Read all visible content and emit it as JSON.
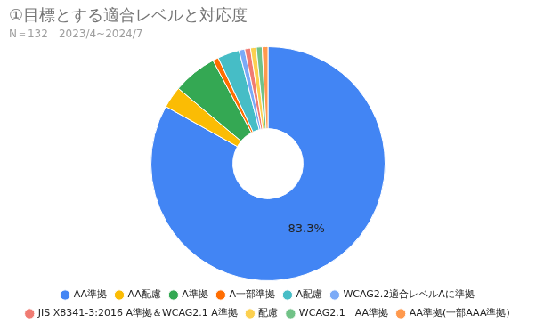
{
  "chart_data": {
    "type": "doughnut",
    "title": "①目標とする適合レベルと対応度",
    "subtitle": "N＝132　2023/4~2024/7",
    "categories": [
      "AA準拠",
      "AA配慮",
      "A準拠",
      "A一部準拠",
      "A配慮",
      "WCAG2.2適合レベルAに準拠",
      "JIS X8341-3:2016 A準拠＆WCAG2.1 A準拠",
      "配慮",
      "WCAG2.1　AA準拠",
      "AA準拠(一部AAA準拠)"
    ],
    "values": [
      83.3,
      3.0,
      6.1,
      0.8,
      3.0,
      0.8,
      0.8,
      0.8,
      0.8,
      0.8
    ],
    "value_labels": [
      "83.3%",
      null,
      null,
      null,
      null,
      null,
      null,
      null,
      null,
      null
    ],
    "colors": [
      "#4285f4",
      "#fbbc04",
      "#34a853",
      "#ff6d01",
      "#46bdc6",
      "#7baaf7",
      "#f07b72",
      "#fcd04f",
      "#71c287",
      "#ff994d"
    ],
    "data_labels": true,
    "legend": "bottom"
  }
}
